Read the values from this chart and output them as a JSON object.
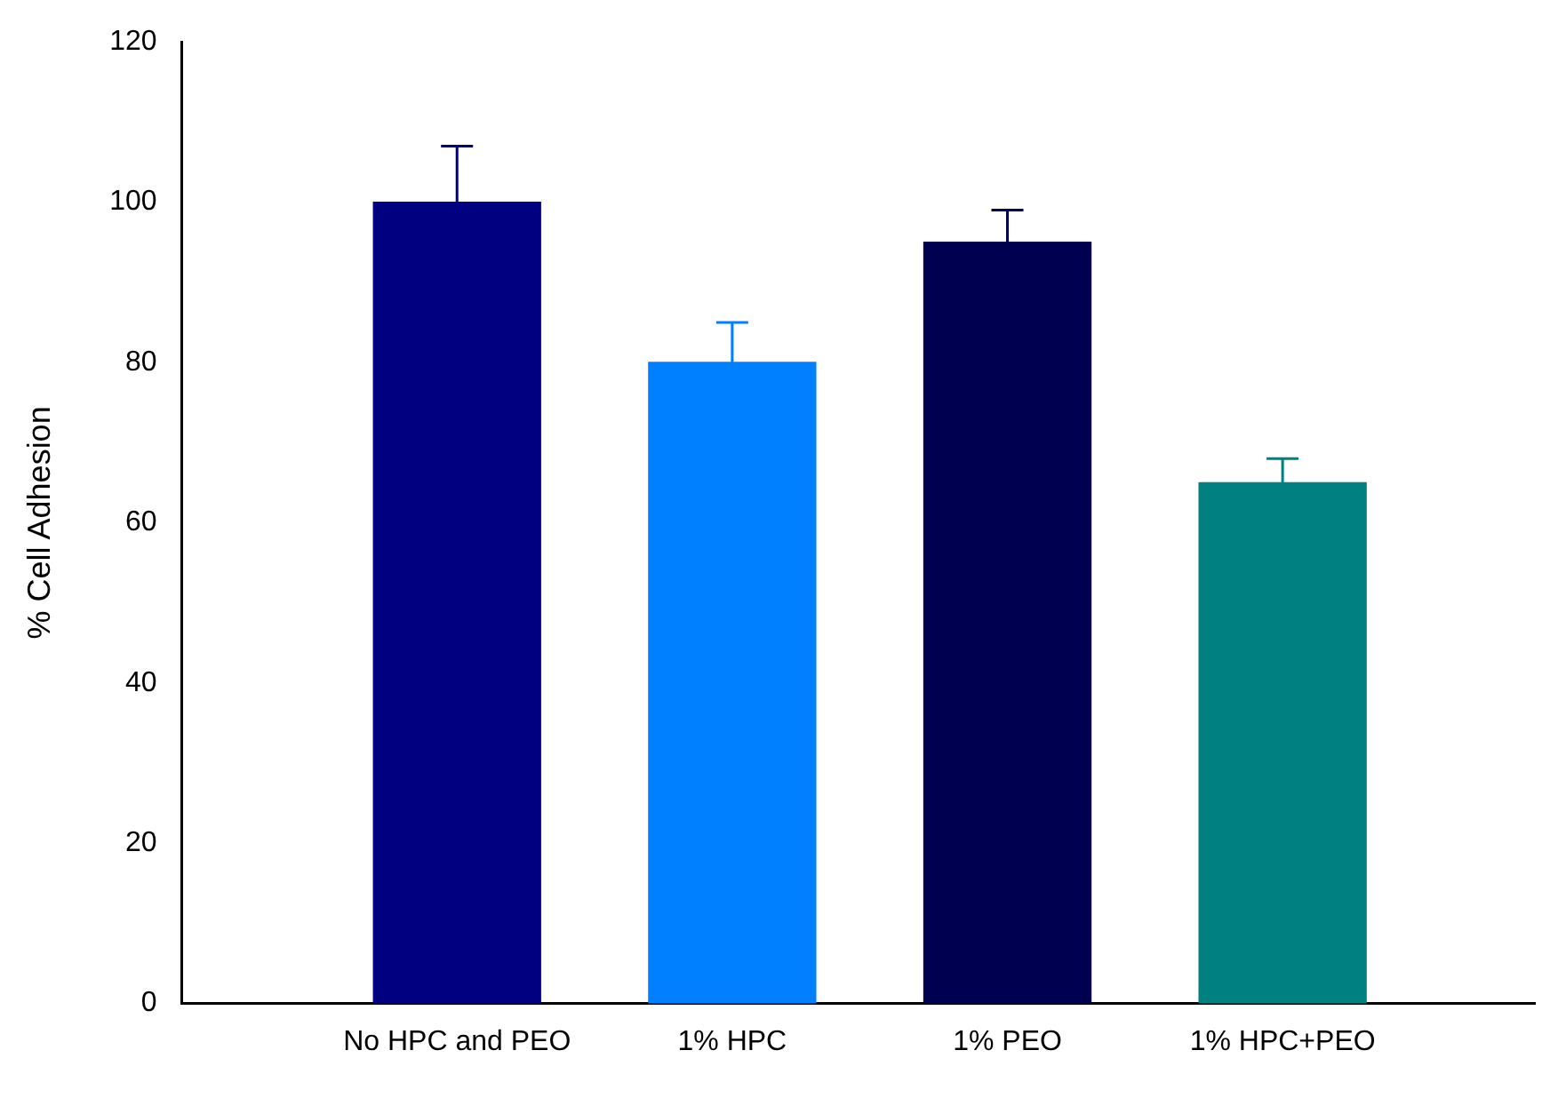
{
  "chart_data": {
    "type": "bar",
    "ylabel": "% Cell Adhesion",
    "categories": [
      "No HPC and PEO",
      "1% HPC",
      "1% PEO",
      "1% HPC+PEO"
    ],
    "values": [
      100,
      80,
      95,
      65
    ],
    "colors": [
      "#000080",
      "#0080ff",
      "#000050",
      "#008080"
    ],
    "errors": [
      [
        100,
        107
      ],
      [
        80,
        85
      ],
      [
        95,
        99
      ],
      [
        65,
        68
      ]
    ],
    "ylim": [
      0,
      120
    ],
    "yticks": [
      0,
      20,
      40,
      60,
      80,
      100,
      120
    ],
    "grid": false,
    "legend": false
  }
}
